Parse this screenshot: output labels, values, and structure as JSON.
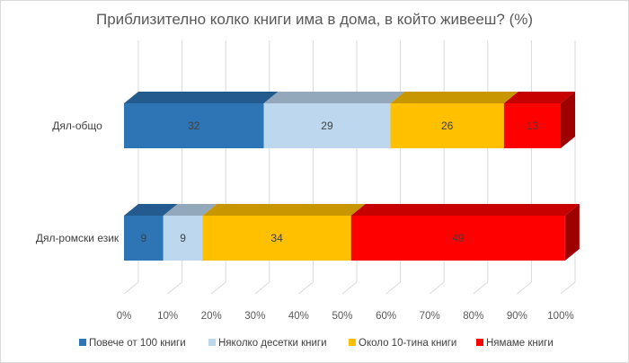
{
  "chart_data": {
    "type": "bar",
    "orientation": "horizontal",
    "stacked": "100%",
    "three_d": true,
    "title": "Приблизително колко книги има в дома, в който живееш? (%)",
    "categories": [
      "Дял-общо",
      "Дял-ромски език"
    ],
    "series": [
      {
        "name": "Повече от 100 книги",
        "color": "#2E75B6",
        "values": [
          32,
          9
        ],
        "labels": [
          "32",
          "9"
        ]
      },
      {
        "name": "Няколко десетки книги",
        "color": "#BDD7EE",
        "values": [
          29,
          9
        ],
        "labels": [
          "29",
          "9"
        ]
      },
      {
        "name": "Около 10-тина книги",
        "color": "#FFC000",
        "values": [
          26,
          34
        ],
        "labels": [
          "26",
          "34"
        ]
      },
      {
        "name": "Нямаме книги",
        "color": "#FF0000",
        "values": [
          13,
          49
        ],
        "labels": [
          "13",
          "49"
        ]
      }
    ],
    "x_ticks": [
      "0%",
      "10%",
      "20%",
      "30%",
      "40%",
      "50%",
      "60%",
      "70%",
      "80%",
      "90%",
      "100%"
    ],
    "xlim": [
      0,
      100
    ],
    "grid": true,
    "legend_position": "bottom"
  }
}
